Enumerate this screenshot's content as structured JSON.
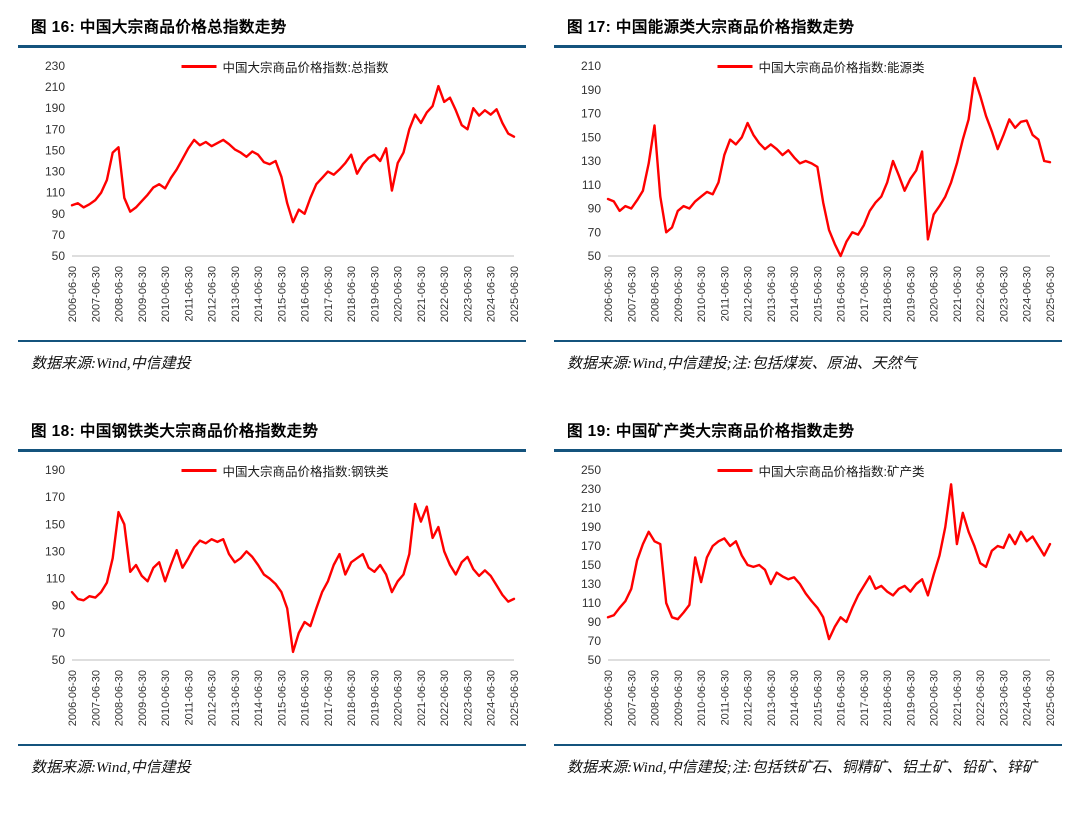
{
  "colors": {
    "accent_rule": "#14537d",
    "series_line": "#ff0000",
    "axis_line": "#bdbdbd",
    "text": "#000000"
  },
  "chart_data": [
    {
      "type": "line",
      "title": "图 16: 中国大宗商品价格总指数走势",
      "legend": "中国大宗商品价格指数:总指数",
      "source": "数据来源:Wind,中信建投",
      "ylim": [
        50,
        230
      ],
      "ystep": 20,
      "grid": false,
      "legend_position": "top-center",
      "x_labels": [
        "2006-06-30",
        "2007-06-30",
        "2008-06-30",
        "2009-06-30",
        "2010-06-30",
        "2011-06-30",
        "2012-06-30",
        "2013-06-30",
        "2014-06-30",
        "2015-06-30",
        "2016-06-30",
        "2017-06-30",
        "2018-06-30",
        "2019-06-30",
        "2020-06-30",
        "2021-06-30",
        "2022-06-30",
        "2023-06-30",
        "2024-06-30",
        "2025-06-30"
      ],
      "values": [
        98,
        100,
        96,
        99,
        103,
        110,
        122,
        148,
        153,
        105,
        92,
        96,
        102,
        108,
        115,
        118,
        114,
        124,
        132,
        142,
        152,
        160,
        155,
        158,
        154,
        157,
        160,
        156,
        151,
        148,
        144,
        149,
        146,
        139,
        137,
        140,
        125,
        100,
        82,
        94,
        90,
        105,
        118,
        124,
        130,
        127,
        132,
        138,
        146,
        128,
        137,
        143,
        146,
        140,
        152,
        112,
        138,
        148,
        170,
        184,
        176,
        186,
        192,
        211,
        196,
        200,
        188,
        174,
        170,
        190,
        183,
        188,
        184,
        189,
        176,
        166,
        163
      ]
    },
    {
      "type": "line",
      "title": "图 17: 中国能源类大宗商品价格指数走势",
      "legend": "中国大宗商品价格指数:能源类",
      "source": "数据来源:Wind,中信建投;注:包括煤炭、原油、天然气",
      "ylim": [
        50,
        210
      ],
      "ystep": 20,
      "grid": false,
      "legend_position": "top-center",
      "x_labels": [
        "2006-06-30",
        "2007-06-30",
        "2008-06-30",
        "2009-06-30",
        "2010-06-30",
        "2011-06-30",
        "2012-06-30",
        "2013-06-30",
        "2014-06-30",
        "2015-06-30",
        "2016-06-30",
        "2017-06-30",
        "2018-06-30",
        "2019-06-30",
        "2020-06-30",
        "2021-06-30",
        "2022-06-30",
        "2023-06-30",
        "2024-06-30",
        "2025-06-30"
      ],
      "values": [
        98,
        96,
        88,
        92,
        90,
        97,
        105,
        128,
        160,
        100,
        70,
        74,
        88,
        92,
        90,
        96,
        100,
        104,
        102,
        112,
        135,
        148,
        144,
        150,
        162,
        152,
        145,
        140,
        144,
        140,
        135,
        139,
        133,
        128,
        130,
        128,
        125,
        95,
        72,
        60,
        50,
        62,
        70,
        68,
        76,
        88,
        95,
        100,
        112,
        130,
        118,
        105,
        115,
        122,
        138,
        64,
        85,
        92,
        100,
        112,
        128,
        148,
        165,
        200,
        185,
        168,
        155,
        140,
        152,
        165,
        158,
        163,
        164,
        152,
        148,
        130,
        129
      ]
    },
    {
      "type": "line",
      "title": "图 18: 中国钢铁类大宗商品价格指数走势",
      "legend": "中国大宗商品价格指数:钢铁类",
      "source": "数据来源:Wind,中信建投",
      "ylim": [
        50,
        190
      ],
      "ystep": 20,
      "grid": false,
      "legend_position": "top-center",
      "x_labels": [
        "2006-06-30",
        "2007-06-30",
        "2008-06-30",
        "2009-06-30",
        "2010-06-30",
        "2011-06-30",
        "2012-06-30",
        "2013-06-30",
        "2014-06-30",
        "2015-06-30",
        "2016-06-30",
        "2017-06-30",
        "2018-06-30",
        "2019-06-30",
        "2020-06-30",
        "2021-06-30",
        "2022-06-30",
        "2023-06-30",
        "2024-06-30",
        "2025-06-30"
      ],
      "values": [
        100,
        95,
        94,
        97,
        96,
        100,
        107,
        125,
        159,
        150,
        115,
        120,
        112,
        108,
        118,
        122,
        108,
        120,
        131,
        118,
        125,
        133,
        138,
        136,
        139,
        137,
        139,
        128,
        122,
        125,
        130,
        126,
        120,
        113,
        110,
        106,
        100,
        88,
        56,
        70,
        78,
        75,
        88,
        100,
        108,
        120,
        128,
        113,
        122,
        125,
        128,
        118,
        115,
        120,
        113,
        100,
        108,
        113,
        128,
        165,
        152,
        163,
        140,
        148,
        130,
        120,
        113,
        122,
        126,
        117,
        112,
        116,
        112,
        105,
        98,
        93,
        95
      ]
    },
    {
      "type": "line",
      "title": "图 19: 中国矿产类大宗商品价格指数走势",
      "legend": "中国大宗商品价格指数:矿产类",
      "source": "数据来源:Wind,中信建投;注:包括铁矿石、铜精矿、铝土矿、铅矿、锌矿",
      "ylim": [
        50,
        250
      ],
      "ystep": 20,
      "grid": false,
      "legend_position": "top-center",
      "x_labels": [
        "2006-06-30",
        "2007-06-30",
        "2008-06-30",
        "2009-06-30",
        "2010-06-30",
        "2011-06-30",
        "2012-06-30",
        "2013-06-30",
        "2014-06-30",
        "2015-06-30",
        "2016-06-30",
        "2017-06-30",
        "2018-06-30",
        "2019-06-30",
        "2020-06-30",
        "2021-06-30",
        "2022-06-30",
        "2023-06-30",
        "2024-06-30",
        "2025-06-30"
      ],
      "values": [
        95,
        97,
        105,
        112,
        125,
        155,
        172,
        185,
        175,
        172,
        110,
        95,
        93,
        100,
        108,
        158,
        132,
        158,
        170,
        175,
        178,
        170,
        175,
        160,
        150,
        148,
        150,
        145,
        130,
        142,
        138,
        135,
        137,
        130,
        120,
        112,
        105,
        95,
        72,
        85,
        95,
        90,
        105,
        118,
        128,
        138,
        125,
        128,
        122,
        118,
        125,
        128,
        122,
        130,
        135,
        118,
        140,
        160,
        190,
        235,
        172,
        205,
        185,
        170,
        152,
        148,
        165,
        170,
        168,
        182,
        172,
        185,
        175,
        180,
        170,
        160,
        172
      ]
    }
  ]
}
